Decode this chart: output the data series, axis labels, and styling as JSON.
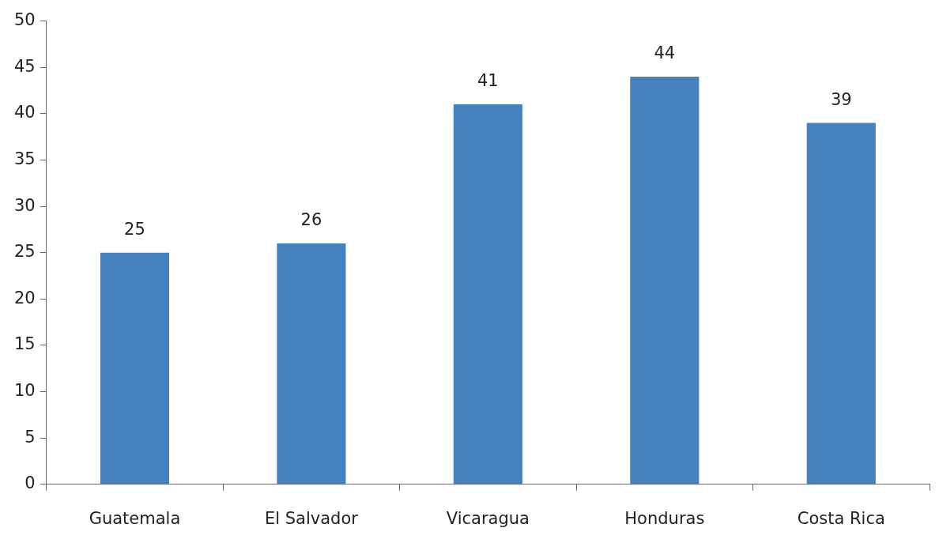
{
  "chart_data": {
    "type": "bar",
    "categories": [
      "Guatemala",
      "El Salvador",
      "Vicaragua",
      "Honduras",
      "Costa Rica"
    ],
    "values": [
      25,
      26,
      41,
      44,
      39
    ],
    "color": "#4580bf",
    "ylim": [
      0,
      50
    ],
    "yticks": [
      0,
      5,
      10,
      15,
      20,
      25,
      30,
      35,
      40,
      45,
      50
    ],
    "grid": false,
    "data_labels": true,
    "legend": false
  }
}
